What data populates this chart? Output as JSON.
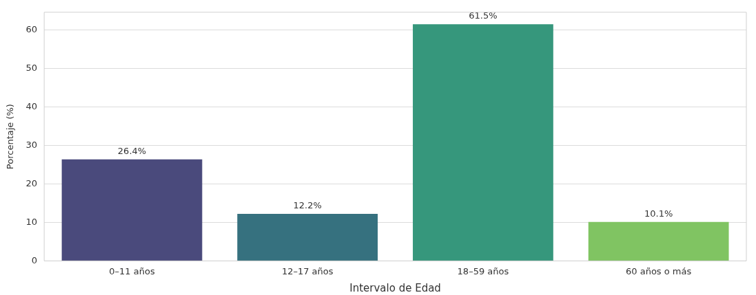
{
  "chart_data": {
    "type": "bar",
    "xlabel": "Intervalo de Edad",
    "ylabel": "Porcentaje (%)",
    "categories": [
      "0–11 años",
      "12–17 años",
      "18–59 años",
      "60 años o más"
    ],
    "values": [
      26.4,
      12.2,
      61.5,
      10.1
    ],
    "colors": [
      "#4a4a7c",
      "#36717f",
      "#36977c",
      "#80c462"
    ],
    "value_labels": [
      "26.4%",
      "12.2%",
      "61.5%",
      "10.1%"
    ],
    "ylim": [
      0,
      64.6
    ],
    "yticks": [
      0,
      10,
      20,
      30,
      40,
      50,
      60
    ],
    "grid": "y"
  }
}
